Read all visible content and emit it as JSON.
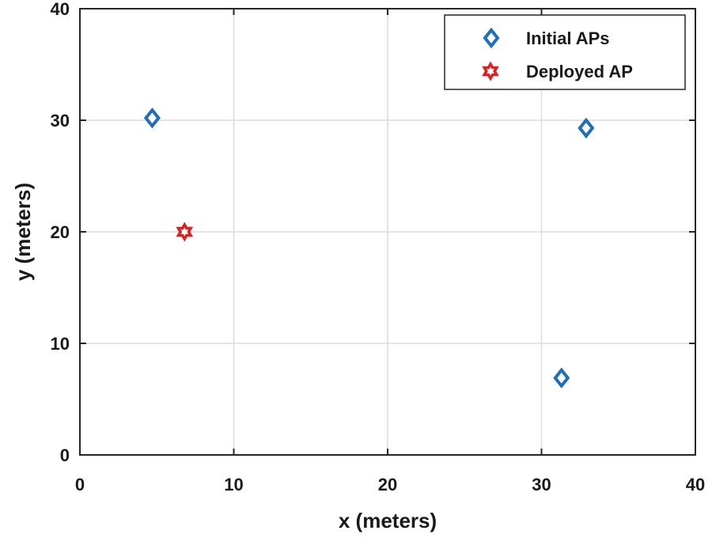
{
  "chart_data": {
    "type": "scatter",
    "title": "",
    "xlabel": "x (meters)",
    "ylabel": "y (meters)",
    "xlim": [
      0,
      40
    ],
    "ylim": [
      0,
      40
    ],
    "xticks": [
      0,
      10,
      20,
      30,
      40
    ],
    "yticks": [
      0,
      10,
      20,
      30,
      40
    ],
    "grid": true,
    "legend_position": "top-right",
    "series": [
      {
        "name": "Initial APs",
        "marker": "diamond",
        "color": "#1f6fb8",
        "points": [
          {
            "x": 4.7,
            "y": 30.2
          },
          {
            "x": 32.9,
            "y": 29.3
          },
          {
            "x": 31.3,
            "y": 6.9
          }
        ]
      },
      {
        "name": "Deployed AP",
        "marker": "hexagram",
        "color": "#e02020",
        "points": [
          {
            "x": 6.8,
            "y": 20.0
          }
        ]
      }
    ]
  }
}
